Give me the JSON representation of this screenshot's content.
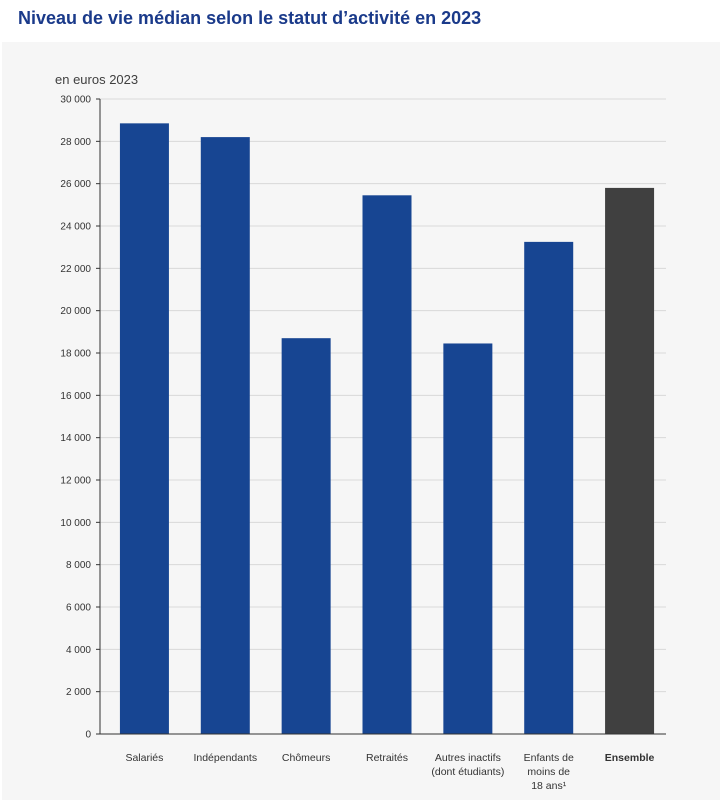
{
  "title": "Niveau de vie médian selon le statut d’activité en 2023",
  "colors": {
    "title": "#1a3a8a",
    "bar": "#174592",
    "bar_total": "#404040",
    "grid": "#d9d9d9",
    "axis": "#333333"
  },
  "chart_data": {
    "type": "bar",
    "title": "",
    "ylabel": "en euros 2023",
    "xlabel": "",
    "ylim": [
      0,
      30000
    ],
    "ytick_step": 2000,
    "ytick_labels": [
      "0",
      "2 000",
      "4 000",
      "6 000",
      "8 000",
      "10 000",
      "12 000",
      "14 000",
      "16 000",
      "18 000",
      "20 000",
      "22 000",
      "24 000",
      "26 000",
      "28 000",
      "30 000"
    ],
    "grid": true,
    "categories": [
      "Salariés",
      "Indépendants",
      "Chômeurs",
      "Retraités",
      "Autres inactifs (dont étudiants)",
      "Enfants de moins de 18 ans¹",
      "Ensemble"
    ],
    "category_label_lines": [
      [
        "Salariés"
      ],
      [
        "Indépendants"
      ],
      [
        "Chômeurs"
      ],
      [
        "Retraités"
      ],
      [
        "Autres inactifs",
        "(dont étudiants)"
      ],
      [
        "Enfants de",
        "moins de",
        "18 ans¹"
      ],
      [
        "Ensemble"
      ]
    ],
    "values": [
      28850,
      28200,
      18700,
      25450,
      18450,
      23250,
      25800
    ],
    "highlight": [
      false,
      false,
      false,
      false,
      false,
      false,
      true
    ]
  }
}
